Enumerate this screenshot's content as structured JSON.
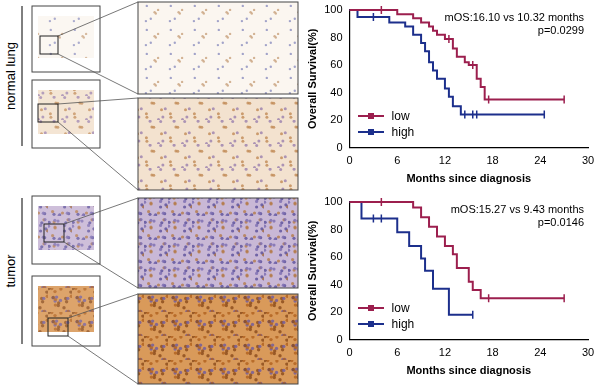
{
  "row_labels": [
    "normal lung",
    "tumor"
  ],
  "chart_data": [
    {
      "type": "line",
      "line_style": "step",
      "marker": "line",
      "annotations": [
        "mOS:16.10 vs 10.32 months",
        "p=0.0299"
      ],
      "x_label": "Months since diagnosis",
      "y_label": "Overall Survival(%)",
      "xlim": [
        0,
        30
      ],
      "xticks": [
        0,
        6,
        12,
        18,
        24,
        30
      ],
      "ylim": [
        0,
        100
      ],
      "yticks": [
        0,
        20,
        40,
        60,
        80,
        100
      ],
      "grid": false,
      "legend": "lower left",
      "series": [
        {
          "name": "low",
          "color": "#9c1f4e",
          "x": [
            0,
            6,
            8,
            9,
            10,
            10.5,
            11,
            12,
            13,
            13.5,
            14.5,
            15,
            16,
            16.5,
            17,
            27
          ],
          "values": [
            100,
            97,
            94,
            91,
            88,
            85,
            82,
            79,
            72,
            66,
            62,
            60,
            50,
            44,
            35,
            35
          ],
          "censored": {
            "x": [
              4,
              12.5,
              15.5,
              17.5,
              27
            ],
            "y": [
              100,
              79,
              60,
              35,
              35
            ]
          }
        },
        {
          "name": "high",
          "color": "#1c2f8c",
          "x": [
            0,
            1,
            5,
            7,
            8,
            9,
            9.5,
            10,
            10.5,
            11,
            12,
            12.5,
            13,
            14,
            24.5
          ],
          "values": [
            100,
            95,
            91,
            88,
            82,
            76,
            70,
            62,
            56,
            50,
            43,
            37,
            30,
            24,
            24
          ],
          "censored": {
            "x": [
              3,
              14.5,
              15.5,
              16,
              24.5
            ],
            "y": [
              95,
              24,
              24,
              24,
              24
            ]
          }
        }
      ]
    },
    {
      "type": "line",
      "line_style": "step",
      "marker": "line",
      "annotations": [
        "mOS:15.27 vs 9.43 months",
        "p=0.0146"
      ],
      "x_label": "Months since diagnosis",
      "y_label": "Overall Survival(%)",
      "xlim": [
        0,
        30
      ],
      "xticks": [
        0,
        6,
        12,
        18,
        24,
        30
      ],
      "ylim": [
        0,
        100
      ],
      "yticks": [
        0,
        20,
        40,
        60,
        80,
        100
      ],
      "grid": false,
      "legend": "lower left",
      "series": [
        {
          "name": "low",
          "color": "#9c1f4e",
          "x": [
            0,
            8,
            9,
            10,
            11,
            12,
            13,
            13.5,
            15,
            15.5,
            16.5,
            27
          ],
          "values": [
            100,
            96,
            89,
            82,
            75,
            68,
            62,
            52,
            42,
            36,
            30,
            30
          ],
          "censored": {
            "x": [
              4,
              17.5,
              27
            ],
            "y": [
              100,
              30,
              30
            ]
          }
        },
        {
          "name": "high",
          "color": "#1c2f8c",
          "x": [
            0,
            1.5,
            6,
            7.5,
            9,
            9.5,
            10.5,
            12.5,
            15.5
          ],
          "values": [
            100,
            88,
            78,
            68,
            59,
            50,
            37,
            18,
            18
          ],
          "censored": {
            "x": [
              3,
              4,
              15.5
            ],
            "y": [
              88,
              88,
              18
            ]
          }
        }
      ]
    }
  ]
}
